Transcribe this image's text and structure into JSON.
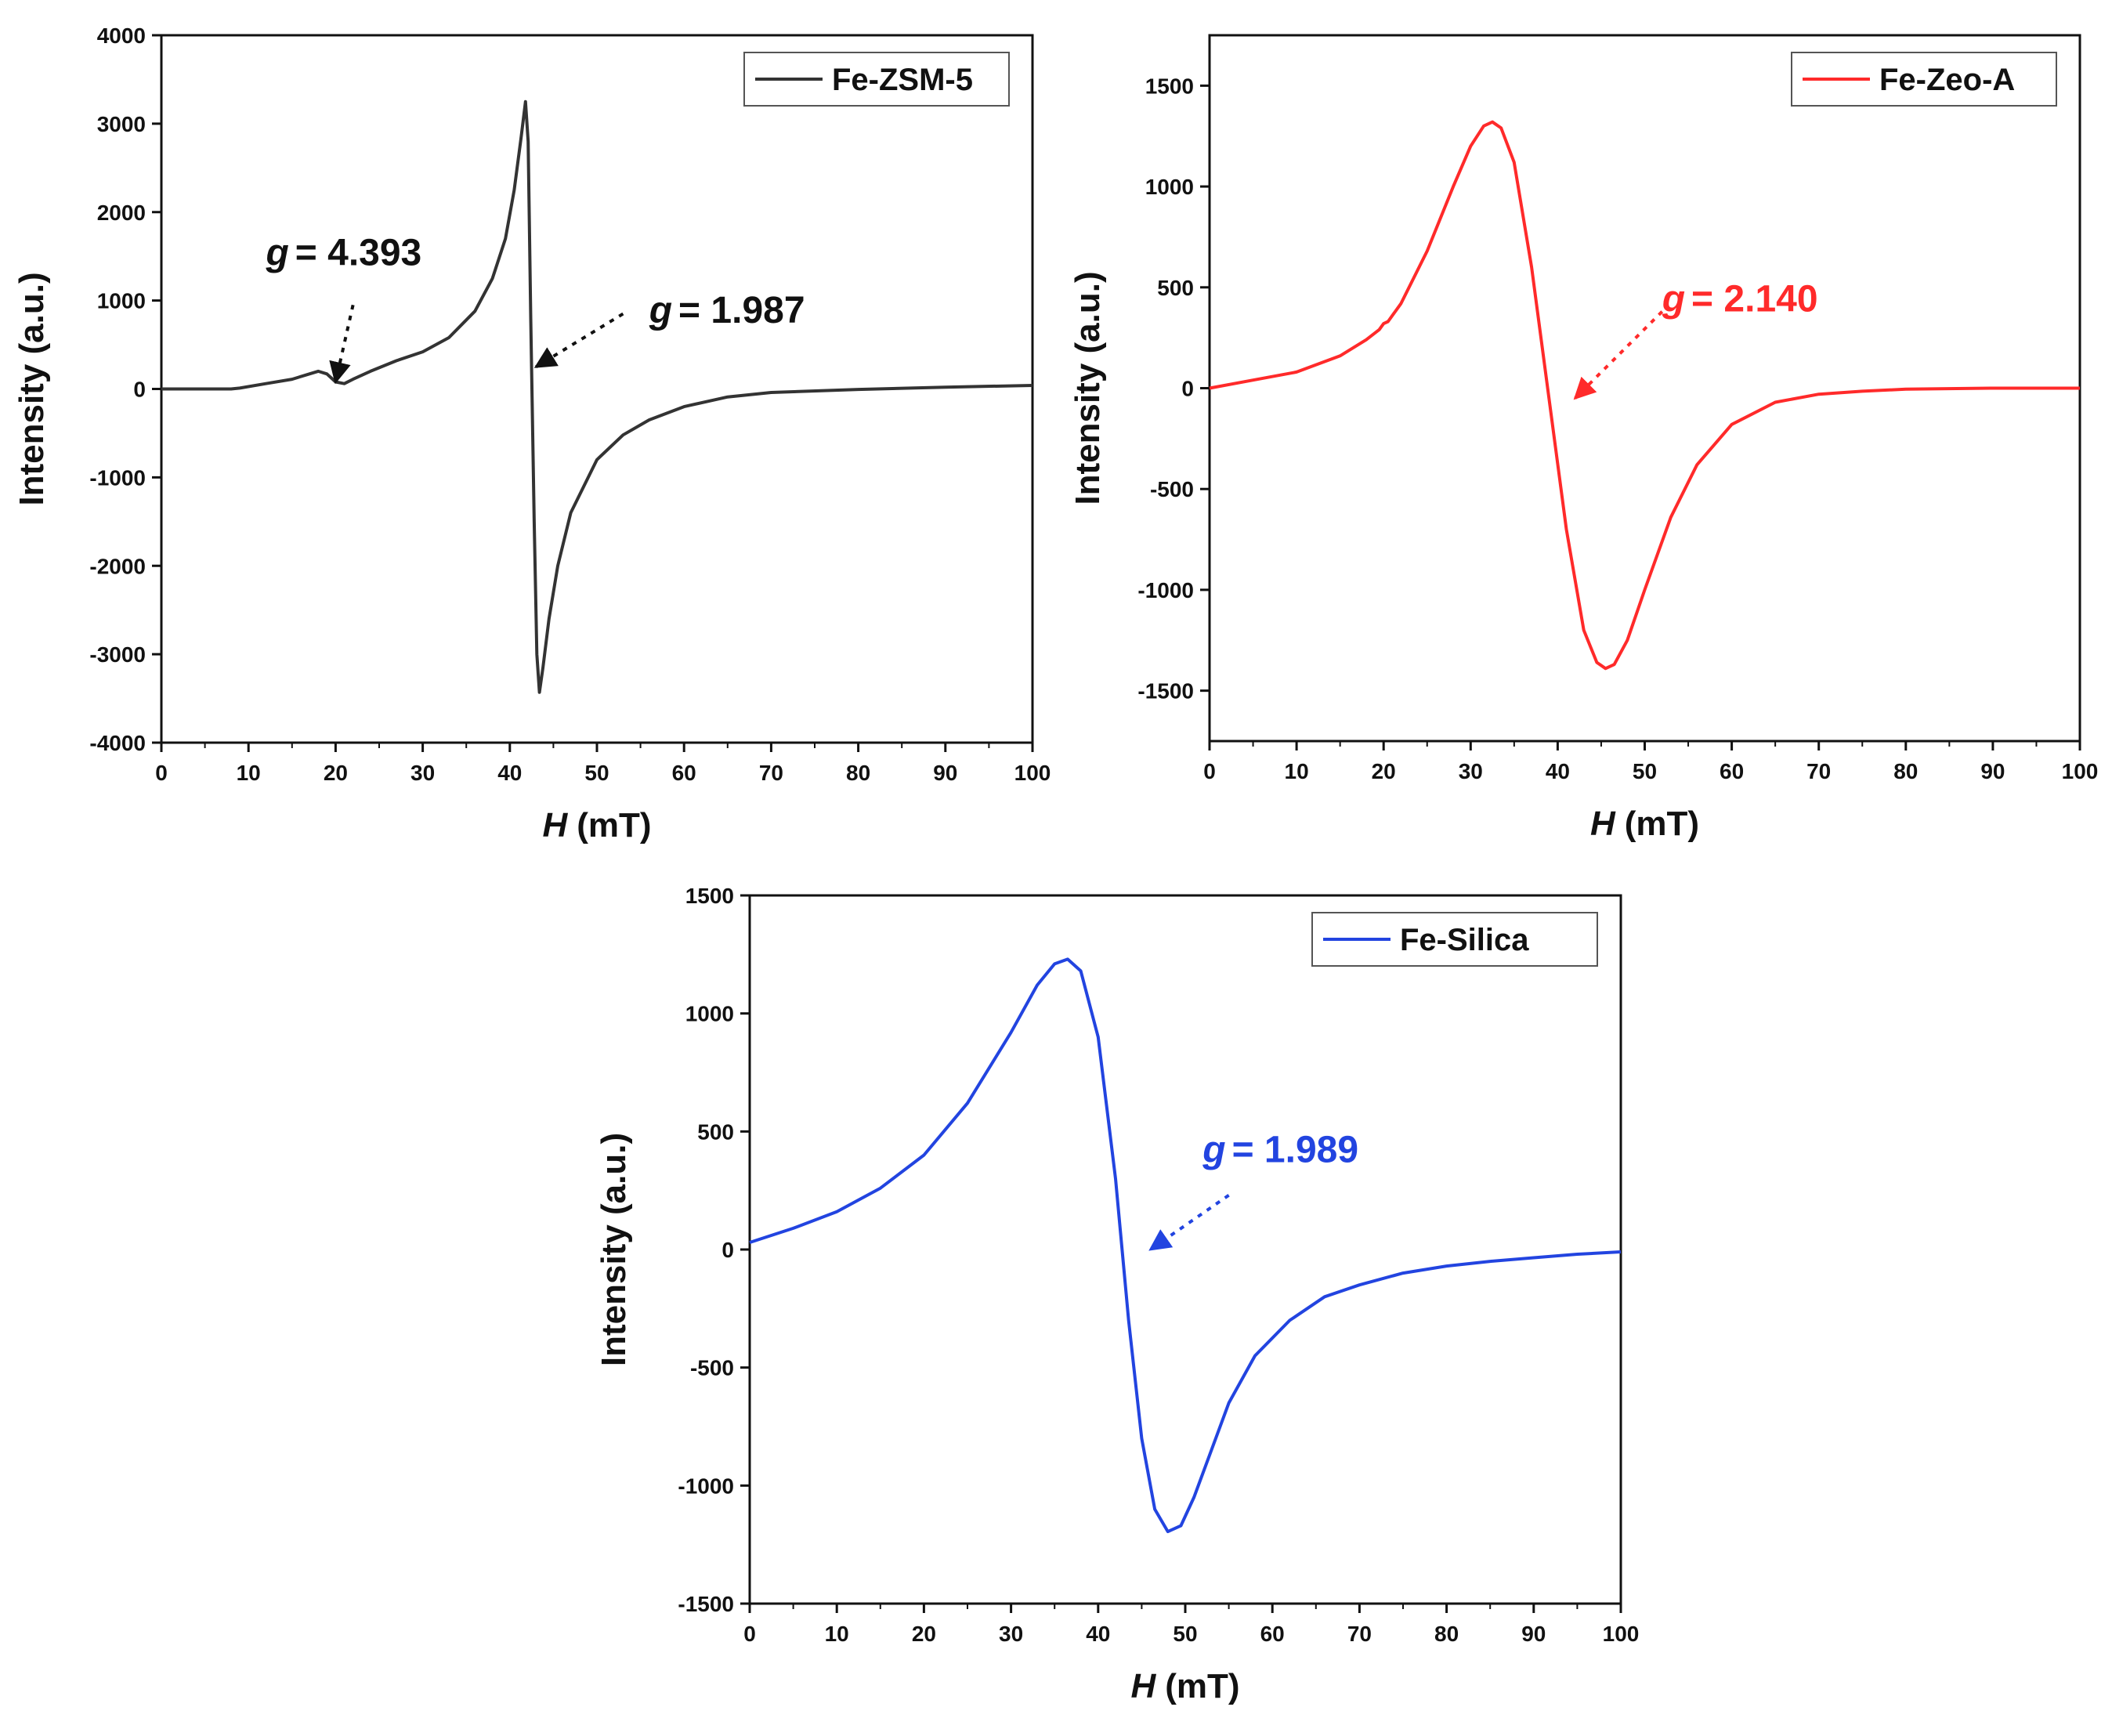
{
  "chart_data": [
    {
      "type": "line",
      "id": "fe-zsm5",
      "legend": "Fe-ZSM-5",
      "color": "#333333",
      "xlabel_var": "H",
      "xlabel_unit": "(mT)",
      "ylabel": "Intensity (a.u.)",
      "xlim": [
        0,
        100
      ],
      "ylim": [
        -4000,
        4000
      ],
      "xticks": [
        0,
        10,
        20,
        30,
        40,
        50,
        60,
        70,
        80,
        90,
        100
      ],
      "yticks": [
        -4000,
        -3000,
        -2000,
        -1000,
        0,
        1000,
        2000,
        3000,
        4000
      ],
      "legend_position": "top-right",
      "series": [
        {
          "name": "Fe-ZSM-5",
          "x": [
            0,
            5,
            8,
            9,
            12,
            15,
            17,
            18,
            19,
            20,
            21,
            22,
            24,
            27,
            30,
            33,
            36,
            38,
            39.5,
            40.5,
            41.3,
            41.8,
            42.1,
            42.4,
            42.8,
            43.1,
            43.4,
            43.8,
            44.5,
            45.5,
            47,
            50,
            53,
            56,
            60,
            65,
            70,
            80,
            90,
            100
          ],
          "y": [
            0,
            0,
            0,
            10,
            60,
            110,
            170,
            200,
            170,
            80,
            60,
            110,
            200,
            320,
            420,
            580,
            880,
            1250,
            1700,
            2250,
            2850,
            3250,
            2800,
            800,
            -1500,
            -3000,
            -3430,
            -3150,
            -2600,
            -2000,
            -1400,
            -800,
            -520,
            -350,
            -200,
            -90,
            -40,
            -5,
            20,
            40
          ]
        }
      ],
      "annotations": [
        {
          "g_symbol": "g",
          "text": "= 4.393",
          "color": "#111111",
          "label_x": 12,
          "label_y": 1400,
          "arrow_from": [
            22,
            950
          ],
          "arrow_to": [
            20,
            80
          ]
        },
        {
          "g_symbol": "g",
          "text": "= 1.987",
          "color": "#111111",
          "label_x": 56,
          "label_y": 750,
          "arrow_from": [
            53,
            850
          ],
          "arrow_to": [
            43,
            250
          ]
        }
      ]
    },
    {
      "type": "line",
      "id": "fe-zeo-a",
      "legend": "Fe-Zeo-A",
      "color": "#ff2a2a",
      "xlabel_var": "H",
      "xlabel_unit": "(mT)",
      "ylabel": "Intensity (a.u.)",
      "xlim": [
        0,
        100
      ],
      "ylim": [
        -1750,
        1750
      ],
      "xticks": [
        0,
        10,
        20,
        30,
        40,
        50,
        60,
        70,
        80,
        90,
        100
      ],
      "yticks": [
        -1500,
        -1000,
        -500,
        0,
        500,
        1000,
        1500
      ],
      "legend_position": "top-right",
      "series": [
        {
          "name": "Fe-Zeo-A",
          "x": [
            0,
            5,
            10,
            15,
            18,
            19.5,
            20,
            20.5,
            22,
            25,
            28,
            30,
            31.5,
            32.5,
            33.5,
            35,
            37,
            39,
            41,
            43,
            44.5,
            45.5,
            46.5,
            48,
            50,
            53,
            56,
            60,
            65,
            70,
            75,
            80,
            90,
            100
          ],
          "y": [
            0,
            40,
            80,
            160,
            240,
            290,
            320,
            330,
            420,
            680,
            1000,
            1200,
            1300,
            1320,
            1290,
            1120,
            600,
            -50,
            -700,
            -1200,
            -1360,
            -1390,
            -1370,
            -1250,
            -1000,
            -640,
            -380,
            -180,
            -70,
            -30,
            -15,
            -5,
            0,
            0
          ]
        }
      ],
      "annotations": [
        {
          "g_symbol": "g",
          "text": "= 2.140",
          "color": "#ff2a2a",
          "label_x": 52,
          "label_y": 380,
          "arrow_from": [
            52,
            380
          ],
          "arrow_to": [
            42,
            -50
          ]
        }
      ]
    },
    {
      "type": "line",
      "id": "fe-silica",
      "legend": "Fe-Silica",
      "color": "#2244e0",
      "xlabel_var": "H",
      "xlabel_unit": "(mT)",
      "ylabel": "Intensity (a.u.)",
      "xlim": [
        0,
        100
      ],
      "ylim": [
        -1500,
        1500
      ],
      "xticks": [
        0,
        10,
        20,
        30,
        40,
        50,
        60,
        70,
        80,
        90,
        100
      ],
      "yticks": [
        -1500,
        -1000,
        -500,
        0,
        500,
        1000,
        1500
      ],
      "legend_position": "top-right",
      "series": [
        {
          "name": "Fe-Silica",
          "x": [
            0,
            5,
            10,
            15,
            20,
            25,
            30,
            33,
            35,
            36.5,
            38,
            40,
            42,
            43.5,
            45,
            46.5,
            48,
            49.5,
            51,
            53,
            55,
            58,
            62,
            66,
            70,
            75,
            80,
            85,
            90,
            95,
            100
          ],
          "y": [
            30,
            90,
            160,
            260,
            400,
            620,
            920,
            1120,
            1210,
            1230,
            1180,
            900,
            300,
            -300,
            -800,
            -1100,
            -1195,
            -1170,
            -1050,
            -850,
            -650,
            -450,
            -300,
            -200,
            -150,
            -100,
            -70,
            -50,
            -35,
            -20,
            -10
          ]
        }
      ],
      "annotations": [
        {
          "g_symbol": "g",
          "text": "= 1.989",
          "color": "#2244e0",
          "label_x": 52,
          "label_y": 370,
          "arrow_from": [
            55,
            230
          ],
          "arrow_to": [
            46,
            0
          ]
        }
      ]
    }
  ]
}
